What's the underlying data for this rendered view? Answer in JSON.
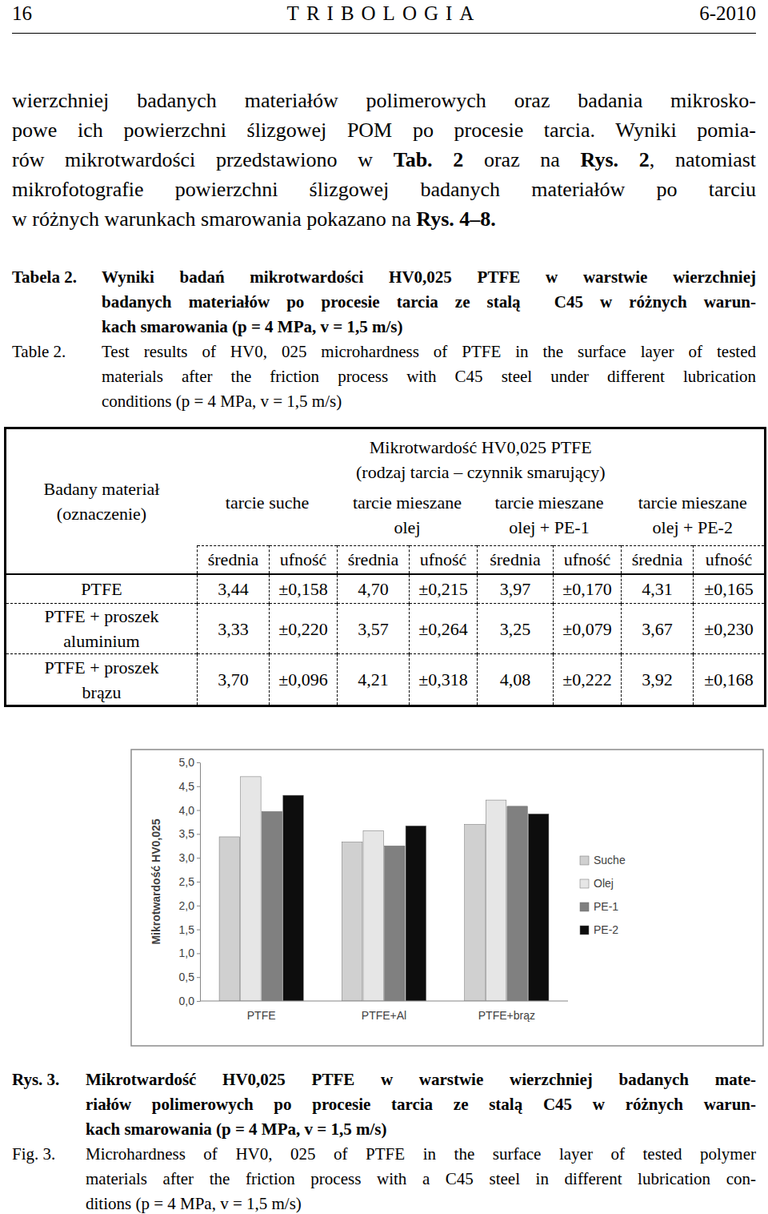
{
  "header": {
    "page": "16",
    "journal": "TRIBOLOGIA",
    "issue": "6-2010"
  },
  "paragraph": [
    [
      "wierzchniej badanych materiałów polimerowych oraz badania mikrosko-"
    ],
    [
      "powe ich powierzchni ślizgowej POM po procesie tarcia. Wyniki pomia-"
    ],
    [
      "rów mikrotwardości przedstawiono w ",
      "Tab. 2",
      " oraz na ",
      "Rys. 2",
      ", natomiast"
    ],
    [
      "mikrofotografie powierzchni ślizgowej badanych materiałów po tarciu"
    ],
    [
      "w różnych warunkach smarowania pokazano na ",
      "Rys. 4–8."
    ]
  ],
  "table_caption": {
    "label_pl": "Tabela 2.",
    "lines_pl": [
      "Wyniki badań mikrotwardości HV0,025 PTFE w warstwie wierzchniej",
      "badanych materiałów po procesie tarcia ze stalą  C45 w różnych warun-",
      "kach smarowania (p = 4 MPa, v = 1,5 m/s)"
    ],
    "label_en": "Table 2.",
    "lines_en": [
      "Test results of HV0, 025 microhardness of PTFE in the surface layer of tested",
      "materials after the friction process with C45 steel under different lubrication",
      "conditions (p = 4 MPa, v = 1,5 m/s)"
    ]
  },
  "table": {
    "corner": "Badany materiał (oznaczenie)",
    "group_header": [
      "Mikrotwardość HV0,025 PTFE",
      "(rodzaj tarcia – czynnik smarujący)"
    ],
    "conditions": [
      "tarcie suche",
      "tarcie mieszane olej",
      "tarcie mieszane olej + PE-1",
      "tarcie mieszane olej + PE-2"
    ],
    "subheaders": [
      "średnia",
      "ufność"
    ],
    "rows": [
      {
        "name": "PTFE",
        "cells": [
          "3,44",
          "±0,158",
          "4,70",
          "±0,215",
          "3,97",
          "±0,170",
          "4,31",
          "±0,165"
        ]
      },
      {
        "name": "PTFE + proszek aluminium",
        "cells": [
          "3,33",
          "±0,220",
          "3,57",
          "±0,264",
          "3,25",
          "±0,079",
          "3,67",
          "±0,230"
        ]
      },
      {
        "name": "PTFE + proszek brązu",
        "cells": [
          "3,70",
          "±0,096",
          "4,21",
          "±0,318",
          "4,08",
          "±0,222",
          "3,92",
          "±0,168"
        ]
      }
    ]
  },
  "chart_data": {
    "type": "bar",
    "y_label": "Mikrotwardość HV0,025",
    "categories": [
      "PTFE",
      "PTFE+Al",
      "PTFE+brąz"
    ],
    "series": [
      {
        "name": "Suche",
        "color": "#d0d0d0",
        "values": [
          3.44,
          3.33,
          3.7
        ]
      },
      {
        "name": "Olej",
        "color": "#e6e6e6",
        "values": [
          4.7,
          3.57,
          4.21
        ]
      },
      {
        "name": "PE-1",
        "color": "#808080",
        "values": [
          3.97,
          3.25,
          4.08
        ]
      },
      {
        "name": "PE-2",
        "color": "#0d0d0d",
        "values": [
          4.31,
          3.67,
          3.92
        ]
      }
    ],
    "ylim": [
      0,
      5
    ],
    "yticks": [
      {
        "value": 0,
        "label": "0,0"
      },
      {
        "value": 0.5,
        "label": "0,5"
      },
      {
        "value": 1,
        "label": "1,0"
      },
      {
        "value": 1.5,
        "label": "1,5"
      },
      {
        "value": 2,
        "label": "2,0"
      },
      {
        "value": 2.5,
        "label": "2,5"
      },
      {
        "value": 3,
        "label": "3,0"
      },
      {
        "value": 3.5,
        "label": "3,5"
      },
      {
        "value": 4,
        "label": "4,0"
      },
      {
        "value": 4.5,
        "label": "4,5"
      },
      {
        "value": 5,
        "label": "5,0"
      }
    ],
    "grid": false,
    "legend": "right"
  },
  "figure_caption": {
    "label_pl": "Rys. 3.",
    "lines_pl": [
      "Mikrotwardość HV0,025 PTFE w warstwie wierzchniej badanych mate-",
      "riałów polimerowych po procesie tarcia ze stalą C45 w różnych warun-",
      "kach smarowania (p = 4 MPa, v = 1,5 m/s)"
    ],
    "label_en": "Fig. 3.",
    "lines_en": [
      "Microhardness of HV0, 025 of PTFE in the surface layer of tested polymer",
      "materials after the friction process with a C45 steel in different lubrication con-",
      "ditions (p = 4 MPa, v = 1,5 m/s)"
    ]
  }
}
